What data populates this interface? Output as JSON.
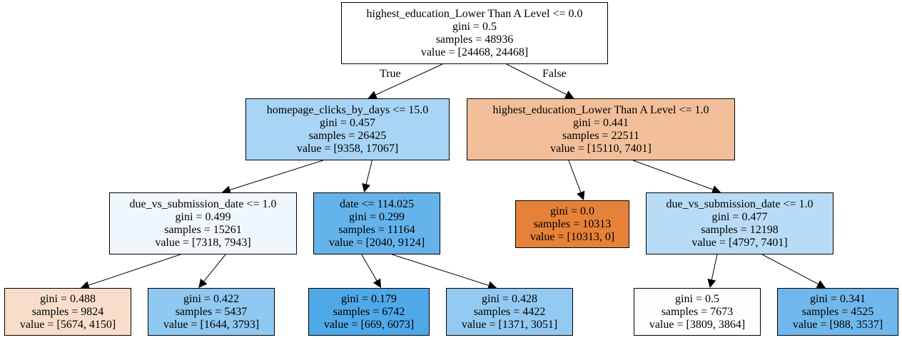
{
  "edge_labels": {
    "true": "True",
    "false": "False"
  },
  "nodes": [
    {
      "lines": [
        "highest_education_Lower Than A Level <= 0.0",
        "gini = 0.5",
        "samples = 48936",
        "value = [24468, 24468]"
      ],
      "fill": "#ffffff"
    },
    {
      "lines": [
        "homepage_clicks_by_days <= 15.0",
        "gini = 0.457",
        "samples = 26425",
        "value = [9358, 17067]"
      ],
      "fill": "#a8d4f5"
    },
    {
      "lines": [
        "highest_education_Lower Than A Level <= 1.0",
        "gini = 0.441",
        "samples = 22511",
        "value = [15110, 7401]"
      ],
      "fill": "#f2bf9a"
    },
    {
      "lines": [
        "due_vs_submission_date <= 1.0",
        "gini = 0.499",
        "samples = 15261",
        "value = [7318, 7943]"
      ],
      "fill": "#eff7fd"
    },
    {
      "lines": [
        "date <= 114.025",
        "gini = 0.299",
        "samples = 11164",
        "value = [2040, 9124]"
      ],
      "fill": "#65b3eb"
    },
    {
      "lines": [
        "gini = 0.0",
        "samples = 10313",
        "value = [10313, 0]"
      ],
      "fill": "#e58139"
    },
    {
      "lines": [
        "due_vs_submission_date <= 1.0",
        "gini = 0.477",
        "samples = 12198",
        "value = [4797, 7401]"
      ],
      "fill": "#b9dcf6"
    },
    {
      "lines": [
        "gini = 0.488",
        "samples = 9824",
        "value = [5674, 4150]"
      ],
      "fill": "#f9ddca"
    },
    {
      "lines": [
        "gini = 0.422",
        "samples = 5437",
        "value = [1644, 3793]"
      ],
      "fill": "#8fc8f0"
    },
    {
      "lines": [
        "gini = 0.179",
        "samples = 6742",
        "value = [669, 6073]"
      ],
      "fill": "#4fa8e8"
    },
    {
      "lines": [
        "gini = 0.428",
        "samples = 4422",
        "value = [1371, 3051]"
      ],
      "fill": "#92c9f1"
    },
    {
      "lines": [
        "gini = 0.5",
        "samples = 7673",
        "value = [3809, 3864]"
      ],
      "fill": "#fcfeff"
    },
    {
      "lines": [
        "gini = 0.341",
        "samples = 4525",
        "value = [988, 3537]"
      ],
      "fill": "#70b8ec"
    }
  ]
}
